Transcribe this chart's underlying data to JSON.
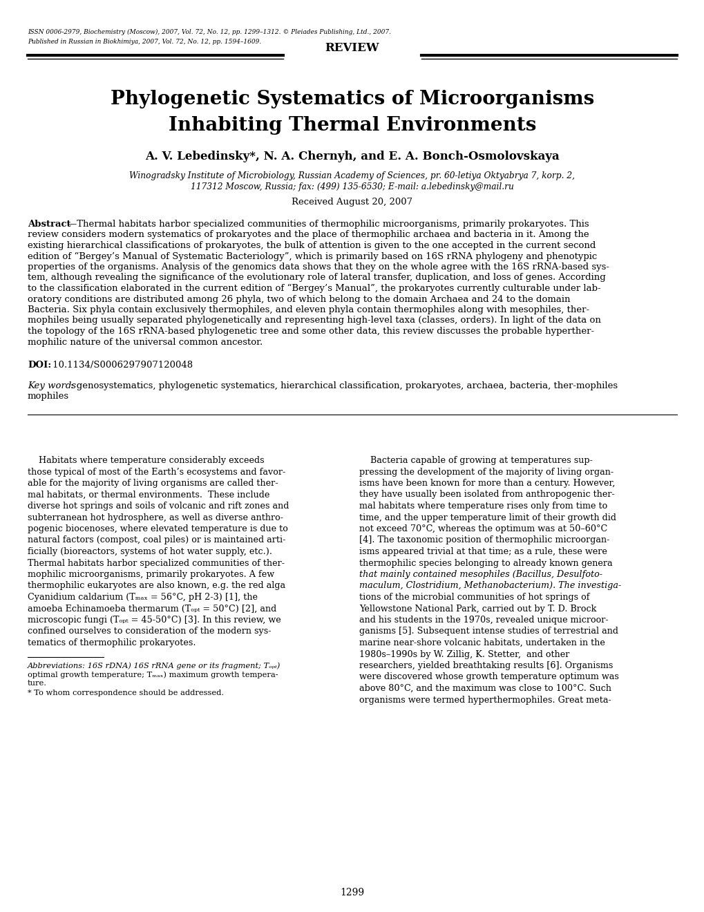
{
  "background_color": "#ffffff",
  "header_line1": "ISSN 0006-2979, Biochemistry (Moscow), 2007, Vol. 72, No. 12, pp. 1299–1312. © Pleiades Publishing, Ltd., 2007.",
  "header_line2": "Published in Russian in Biokhimiya, 2007, Vol. 72, No. 12, pp. 1594–1609.",
  "review_label": "REVIEW",
  "title_line1": "Phylogenetic Systematics of Microorganisms",
  "title_line2": "Inhabiting Thermal Environments",
  "authors": "A. V. Lebedinsky*, N. A. Chernyh, and E. A. Bonch-Osmolovskaya",
  "affil_line1": "Winogradsky Institute of Microbiology, Russian Academy of Sciences, pr. 60-letiya Oktyabrya 7, korp. 2,",
  "affil_line2": "117312 Moscow, Russia; fax: (499) 135-6530; E-mail: a.lebedinsky@mail.ru",
  "received": "Received August 20, 2007",
  "abstract_label": "Abstract",
  "abstract_dash": "—",
  "abstract_text": "Thermal habitats harbor specialized communities of thermophilic microorganisms, primarily prokaryotes. This review considers modern systematics of prokaryotes and the place of thermophilic archaea and bacteria in it. Among the existing hierarchical classifications of prokaryotes, the bulk of attention is given to the one accepted in the current second edition of “Bergey’s Manual of Systematic Bacteriology”, which is primarily based on 16S rRNA phylogeny and phenotypic properties of the organisms. Analysis of the genomics data shows that they on the whole agree with the 16S rRNA-based sys-tem, although revealing the significance of the evolutionary role of lateral transfer, duplication, and loss of genes. According to the classification elaborated in the current edition of “Bergey’s Manual”, the prokaryotes currently culturable under lab-oratory conditions are distributed among 26 phyla, two of which belong to the domain Archaea and 24 to the domain Bacteria. Six phyla contain exclusively thermophiles, and eleven phyla contain thermophiles along with mesophiles, ther-mophiles being usually separated phylogenetically and representing high-level taxa (classes, orders). In light of the data on the topology of the 16S rRNA-based phylogenetic tree and some other data, this review discusses the probable hyperther-mophilic nature of the universal common ancestor.",
  "doi_label": "DOI:",
  "doi_value": " 10.1134/S0006297907120048",
  "keywords_label": "Key words",
  "keywords_text": ": genosystematics, phylogenetic systematics, hierarchical classification, prokaryotes, archaea, bacteria, ther-mophiles",
  "col1_lines": [
    "    Habitats where temperature considerably exceeds",
    "those typical of most of the Earth’s ecosystems and favor-",
    "able for the majority of living organisms are called ther-",
    "mal habitats, or thermal environments.  These include",
    "diverse hot springs and soils of volcanic and rift zones and",
    "subterranean hot hydrosphere, as well as diverse anthro-",
    "pogenic biocenoses, where elevated temperature is due to",
    "natural factors (compost, coal piles) or is maintained arti-",
    "ficially (bioreactors, systems of hot water supply, etc.).",
    "Thermal habitats harbor specialized communities of ther-",
    "mophilic microorganisms, primarily prokaryotes. A few",
    "thermophilic eukaryotes are also known, e.g. the red alga",
    "Cyanidium caldarium (Tₘₐₓ = 56°C, pH 2-3) [1], the",
    "amoeba Echinamoeba thermarum (Tₒₚₜ = 50°C) [2], and",
    "microscopic fungi (Tₒₚₜ = 45-50°C) [3]. In this review, we",
    "confined ourselves to consideration of the modern sys-",
    "tematics of thermophilic prokaryotes."
  ],
  "col1_footnote1": "Abbreviations: 16S rDNA) 16S rRNA gene or its fragment; Tₒₚₜ)",
  "col1_footnote2": "optimal growth temperature; Tₘₐₓ) maximum growth tempera-",
  "col1_footnote3": "ture.",
  "col1_footnote4": "* To whom correspondence should be addressed.",
  "col2_lines": [
    "    Bacteria capable of growing at temperatures sup-",
    "pressing the development of the majority of living organ-",
    "isms have been known for more than a century. However,",
    "they have usually been isolated from anthropogenic ther-",
    "mal habitats where temperature rises only from time to",
    "time, and the upper temperature limit of their growth did",
    "not exceed 70°C, whereas the optimum was at 50–60°C",
    "[4]. The taxonomic position of thermophilic microorgan-",
    "isms appeared trivial at that time; as a rule, these were",
    "thermophilic species belonging to already known genera",
    "that mainly contained mesophiles (Bacillus, Desulfoto-",
    "maculum, Clostridium, Methanobacterium). The investiga-",
    "tions of the microbial communities of hot springs of",
    "Yellowstone National Park, carried out by T. D. Brock",
    "and his students in the 1970s, revealed unique microor-",
    "ganisms [5]. Subsequent intense studies of terrestrial and",
    "marine near-shore volcanic habitats, undertaken in the",
    "1980s–1990s by W. Zillig, K. Stetter,  and other",
    "researchers, yielded breathtaking results [6]. Organisms",
    "were discovered whose growth temperature optimum was",
    "above 80°C, and the maximum was close to 100°C. Such",
    "organisms were termed hyperthermophiles. Great meta-"
  ],
  "page_number": "1299",
  "abstract_lines": [
    "Thermal habitats harbor specialized communities of thermophilic microorganisms, primarily prokaryotes. This",
    "review considers modern systematics of prokaryotes and the place of thermophilic archaea and bacteria in it. Among the",
    "existing hierarchical classifications of prokaryotes, the bulk of attention is given to the one accepted in the current second",
    "edition of “Bergey’s Manual of Systematic Bacteriology”, which is primarily based on 16S rRNA phylogeny and phenotypic",
    "properties of the organisms. Analysis of the genomics data shows that they on the whole agree with the 16S rRNA-based sys-",
    "tem, although revealing the significance of the evolutionary role of lateral transfer, duplication, and loss of genes. According",
    "to the classification elaborated in the current edition of “Bergey’s Manual”, the prokaryotes currently culturable under lab-",
    "oratory conditions are distributed among 26 phyla, two of which belong to the domain Archaea and 24 to the domain",
    "Bacteria. Six phyla contain exclusively thermophiles, and eleven phyla contain thermophiles along with mesophiles, ther-",
    "mophiles being usually separated phylogenetically and representing high-level taxa (classes, orders). In light of the data on",
    "the topology of the 16S rRNA-based phylogenetic tree and some other data, this review discusses the probable hyperther-",
    "mophilic nature of the universal common ancestor."
  ]
}
